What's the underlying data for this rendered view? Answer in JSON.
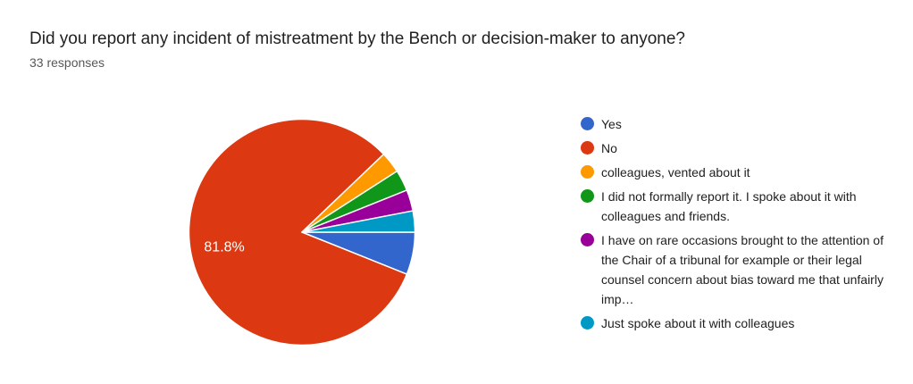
{
  "header": {
    "title": "Did you report any incident of mistreatment by the Bench or decision-maker to anyone?",
    "responses": "33 responses"
  },
  "chart_data": {
    "type": "pie",
    "title": "Did you report any incident of mistreatment by the Bench or decision-maker to anyone?",
    "subtitle": "33 responses",
    "total_responses": 33,
    "start_angle_deg": 0,
    "direction": "clockwise",
    "legend_position": "right",
    "background_color": "#ffffff",
    "slice_separator_color": "#ffffff",
    "slices": [
      {
        "label": "Yes",
        "value": 2,
        "percent": 6.1,
        "color": "#3366CC",
        "shown_percent_label": ""
      },
      {
        "label": "No",
        "value": 27,
        "percent": 81.8,
        "color": "#DC3912",
        "shown_percent_label": "81.8%"
      },
      {
        "label": "colleagues, vented about it",
        "value": 1,
        "percent": 3,
        "color": "#FF9900",
        "shown_percent_label": ""
      },
      {
        "label": "I did not formally report it. I spoke about it with colleagues and friends.",
        "value": 1,
        "percent": 3,
        "color": "#109618",
        "shown_percent_label": ""
      },
      {
        "label": "I have on rare occasions brought to the attention of the Chair of a tribunal for example or their legal counsel concern about bias toward me that unfairly imp…",
        "value": 1,
        "percent": 3,
        "color": "#990099",
        "shown_percent_label": ""
      },
      {
        "label": "Just spoke about it with colleagues",
        "value": 1,
        "percent": 3,
        "color": "#0099C6",
        "shown_percent_label": ""
      }
    ]
  }
}
